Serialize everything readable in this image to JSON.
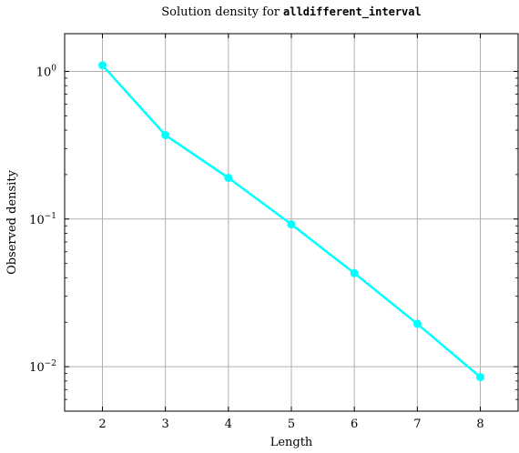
{
  "chart_data": {
    "type": "line",
    "title_prefix": "Solution density for",
    "title_code": "alldifferent_interval",
    "xlabel": "Length",
    "ylabel": "Observed density",
    "x": [
      2,
      3,
      4,
      5,
      6,
      7,
      8
    ],
    "series": [
      {
        "values": [
          1.1,
          0.37,
          0.19,
          0.092,
          0.043,
          0.0195,
          0.0085
        ],
        "color": "#00ffff"
      }
    ],
    "xlim": [
      1.4,
      8.6
    ],
    "ylim": [
      0.005,
      1.8
    ],
    "y_scale": "log",
    "x_ticks": [
      "2",
      "3",
      "4",
      "5",
      "6",
      "7",
      "8"
    ],
    "y_ticks": [
      {
        "base": "10",
        "exp": "0",
        "value": 1
      },
      {
        "base": "10",
        "exp": "−1",
        "value": 0.1
      },
      {
        "base": "10",
        "exp": "−2",
        "value": 0.01
      }
    ],
    "grid": true,
    "grid_color": "#b0b0b0"
  }
}
